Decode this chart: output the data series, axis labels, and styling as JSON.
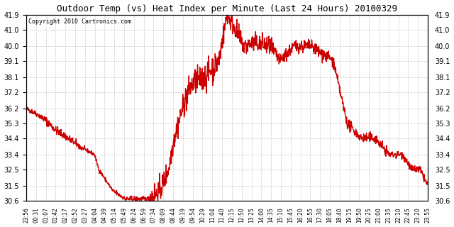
{
  "title": "Outdoor Temp (vs) Heat Index per Minute (Last 24 Hours) 20100329",
  "copyright": "Copyright 2010 Cartronics.com",
  "background_color": "#ffffff",
  "plot_background": "#ffffff",
  "line_color": "#cc0000",
  "line_width": 1.0,
  "ylim": [
    30.6,
    41.9
  ],
  "yticks": [
    30.6,
    31.5,
    32.5,
    33.4,
    34.4,
    35.3,
    36.2,
    37.2,
    38.1,
    39.1,
    40.0,
    41.0,
    41.9
  ],
  "x_labels": [
    "23:56",
    "00:31",
    "01:07",
    "01:42",
    "02:17",
    "02:52",
    "03:27",
    "04:04",
    "04:39",
    "05:14",
    "05:49",
    "06:24",
    "06:59",
    "07:34",
    "08:09",
    "08:44",
    "09:19",
    "09:54",
    "10:29",
    "11:04",
    "11:40",
    "12:15",
    "12:50",
    "13:25",
    "14:00",
    "14:35",
    "15:10",
    "15:45",
    "16:20",
    "16:55",
    "17:30",
    "18:05",
    "18:40",
    "19:15",
    "19:50",
    "20:25",
    "21:00",
    "21:35",
    "22:10",
    "22:45",
    "23:20",
    "23:55"
  ],
  "grid_color": "#bbbbbb",
  "key_times": [
    0,
    35,
    70,
    105,
    150,
    200,
    245,
    260,
    310,
    355,
    395,
    440,
    480,
    510,
    530,
    545,
    560,
    580,
    600,
    640,
    660,
    690,
    720,
    750,
    780,
    820,
    870,
    910,
    960,
    1020,
    1100,
    1150,
    1200,
    1250,
    1300,
    1350,
    1380,
    1410,
    1439
  ],
  "key_vals": [
    36.2,
    35.9,
    35.5,
    34.9,
    34.4,
    33.8,
    33.4,
    32.5,
    31.2,
    30.7,
    30.7,
    30.7,
    31.2,
    32.5,
    34.4,
    35.3,
    36.2,
    37.2,
    37.8,
    38.1,
    38.5,
    39.1,
    41.9,
    41.0,
    40.0,
    40.2,
    40.0,
    39.1,
    40.0,
    40.0,
    39.1,
    35.3,
    34.4,
    34.4,
    33.4,
    33.4,
    32.5,
    32.5,
    31.5
  ]
}
